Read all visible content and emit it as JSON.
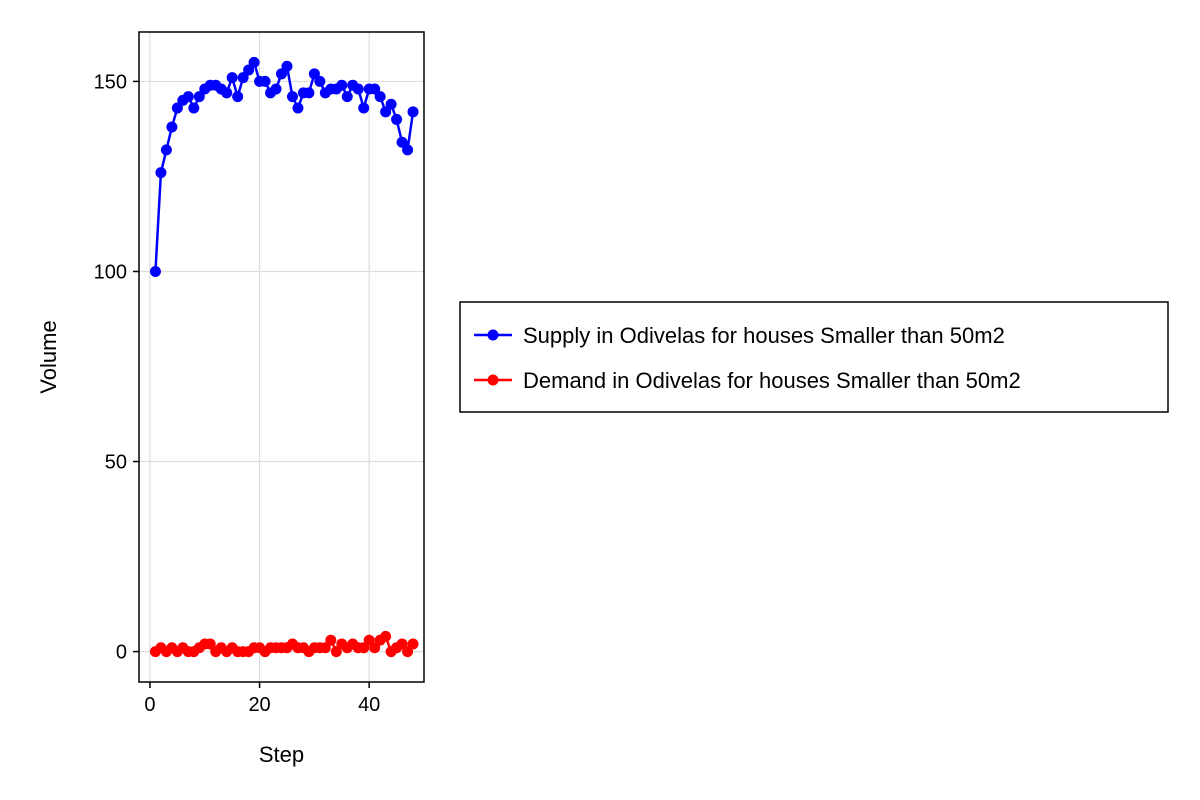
{
  "chart_data": {
    "type": "line",
    "title": "",
    "xlabel": "Step",
    "ylabel": "Volume",
    "xlim": [
      -2,
      50
    ],
    "ylim": [
      -8,
      163
    ],
    "xticks": [
      0,
      20,
      40
    ],
    "yticks": [
      0,
      50,
      100,
      150
    ],
    "xtick_labels": [
      "0",
      "20",
      "40"
    ],
    "ytick_labels": [
      "0",
      "50",
      "100",
      "150"
    ],
    "grid": true,
    "legend_position": "right",
    "x": [
      1,
      2,
      3,
      4,
      5,
      6,
      7,
      8,
      9,
      10,
      11,
      12,
      13,
      14,
      15,
      16,
      17,
      18,
      19,
      20,
      21,
      22,
      23,
      24,
      25,
      26,
      27,
      28,
      29,
      30,
      31,
      32,
      33,
      34,
      35,
      36,
      37,
      38,
      39,
      40,
      41,
      42,
      43,
      44,
      45,
      46,
      47,
      48
    ],
    "series": [
      {
        "name": "Supply in Odivelas for houses Smaller than 50m2",
        "color": "#0000ff",
        "values": [
          100,
          126,
          132,
          138,
          143,
          145,
          146,
          143,
          146,
          148,
          149,
          149,
          148,
          147,
          151,
          146,
          151,
          153,
          155,
          150,
          150,
          147,
          148,
          152,
          154,
          146,
          143,
          147,
          147,
          152,
          150,
          147,
          148,
          148,
          149,
          146,
          149,
          148,
          143,
          148,
          148,
          146,
          142,
          144,
          140,
          134,
          132,
          142
        ]
      },
      {
        "name": "Demand in Odivelas for houses Smaller than 50m2",
        "color": "#ff0000",
        "values": [
          0,
          1,
          0,
          1,
          0,
          1,
          0,
          0,
          1,
          2,
          2,
          0,
          1,
          0,
          1,
          0,
          0,
          0,
          1,
          1,
          0,
          1,
          1,
          1,
          1,
          2,
          1,
          1,
          0,
          1,
          1,
          1,
          3,
          0,
          2,
          1,
          2,
          1,
          1,
          3,
          1,
          3,
          4,
          0,
          1,
          2,
          0,
          2
        ]
      }
    ]
  }
}
